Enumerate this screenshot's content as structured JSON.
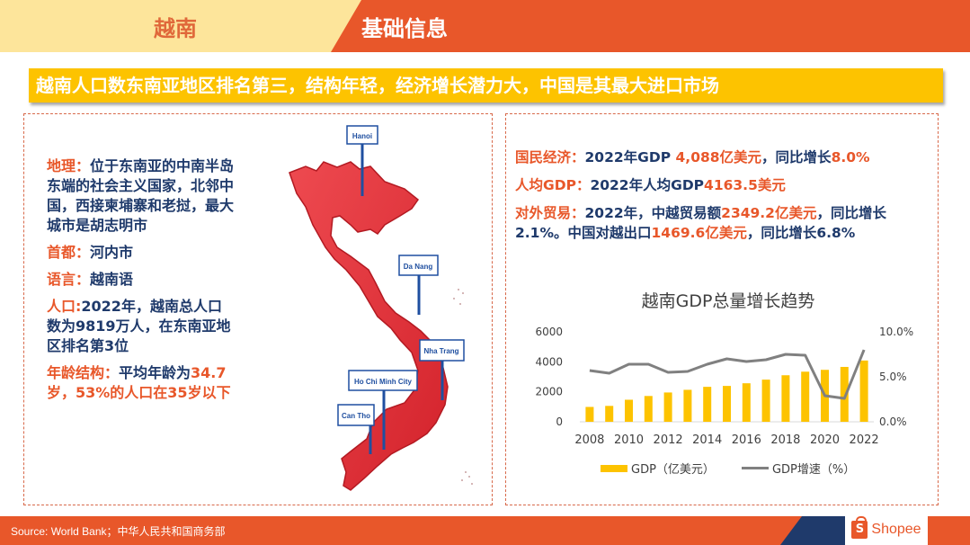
{
  "header": {
    "country": "越南",
    "section": "基础信息"
  },
  "headline": "越南人口数东南亚地区排名第三，结构年轻，经济增长潜力大，中国是其最大进口市场",
  "left_panel": {
    "geography": {
      "label": "地理：",
      "text": "位于东南亚的中南半岛东端的社会主义国家，北邻中国，西接柬埔寨和老挝，最大城市是胡志明市"
    },
    "capital": {
      "label": "首都：",
      "text": "河内市"
    },
    "language": {
      "label": "语言：",
      "text": "越南语"
    },
    "population": {
      "label": "人口:",
      "text": "2022年，越南总人口数为9819万人，在东南亚地区排名第3位"
    },
    "age": {
      "label": "年龄结构：",
      "text": "平均年龄为",
      "highlight": "34.7岁，53%的人口在35岁以下"
    },
    "map": {
      "cities": [
        "Hanoi",
        "Da Nang",
        "Nha Trang",
        "Ho Chi Minh City",
        "Can Tho"
      ],
      "fill_color": "#e0313a"
    }
  },
  "right_panel": {
    "economy": {
      "label": "国民经济：",
      "pre": "2022年GDP ",
      "value": "4,088亿美元",
      "mid": "，同比增长",
      "growth": "8.0%"
    },
    "gdp_per_capita": {
      "label": "人均GDP：",
      "pre": "2022年人均GDP",
      "value": "4163.5美元"
    },
    "trade": {
      "label": "对外贸易：",
      "pre": "2022年，中越贸易额",
      "value1": "2349.2亿美元",
      "mid1": "，同比增长2.1%。中国对越出口",
      "value2": "1469.6亿美元",
      "mid2": "，同比增长6.8%"
    }
  },
  "chart_data": {
    "type": "bar",
    "title": "越南GDP总量增长趋势",
    "categories": [
      "2008",
      "2009",
      "2010",
      "2011",
      "2012",
      "2013",
      "2014",
      "2015",
      "2016",
      "2017",
      "2018",
      "2019",
      "2020",
      "2021",
      "2022"
    ],
    "x_tick_labels": [
      "2008",
      "2010",
      "2012",
      "2014",
      "2016",
      "2018",
      "2020",
      "2022"
    ],
    "series": [
      {
        "name": "GDP（亿美元）",
        "type": "bar",
        "axis": "left",
        "color": "#fdc300",
        "values": [
          991,
          1060,
          1471,
          1722,
          1955,
          2133,
          2332,
          2393,
          2570,
          2812,
          3105,
          3343,
          3466,
          3661,
          4088
        ]
      },
      {
        "name": "GDP增速（%）",
        "type": "line",
        "axis": "right",
        "color": "#808080",
        "values": [
          5.7,
          5.4,
          6.4,
          6.4,
          5.5,
          5.6,
          6.4,
          7.0,
          6.7,
          6.9,
          7.5,
          7.4,
          2.9,
          2.6,
          8.0
        ]
      }
    ],
    "y_left": {
      "ticks": [
        "0",
        "2000",
        "4000",
        "6000"
      ],
      "range": [
        0,
        6000
      ]
    },
    "y_right": {
      "ticks": [
        "0.0%",
        "5.0%",
        "10.0%"
      ],
      "range": [
        0,
        10
      ]
    },
    "legend_position": "bottom",
    "grid": false
  },
  "legend": {
    "bar": "GDP（亿美元）",
    "line": "GDP增速（%）"
  },
  "footer": {
    "source": "Source: World Bank；中华人民共和国商务部",
    "logo_text": "Shopee",
    "logo_glyph": "S"
  }
}
